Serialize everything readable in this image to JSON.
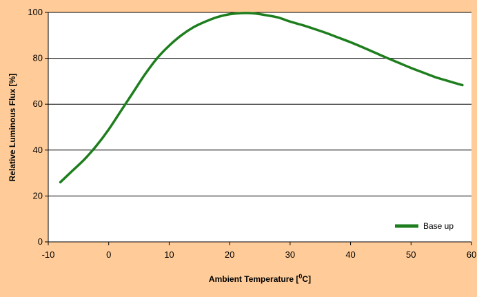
{
  "chart_data": {
    "type": "line",
    "xlabel": "Ambient Temperature [",
    "xlabel_sup": "0",
    "xlabel_suffix": "C]",
    "ylabel": "Relative Luminous Flux [%]",
    "xlim": [
      -10,
      60
    ],
    "ylim": [
      0,
      100
    ],
    "x_ticks": [
      -10,
      0,
      10,
      20,
      30,
      40,
      50,
      60
    ],
    "y_ticks": [
      0,
      20,
      40,
      60,
      80,
      100
    ],
    "grid": "horizontal",
    "legend_position": "bottom-right",
    "series": [
      {
        "name": "Base up",
        "color": "#1E7E1E",
        "x": [
          -8,
          -6,
          -4,
          -2,
          0,
          2,
          4,
          6,
          8,
          10,
          12,
          14,
          16,
          18,
          20,
          22,
          24,
          26,
          28,
          30,
          32,
          34,
          36,
          38,
          40,
          42,
          44,
          46,
          48,
          50,
          52,
          54,
          56,
          58.5
        ],
        "y": [
          26,
          31,
          36,
          42,
          49,
          57,
          65,
          73,
          80,
          85.5,
          90,
          93.5,
          96,
          98,
          99.2,
          99.7,
          99.6,
          98.8,
          97.8,
          96,
          94.5,
          92.8,
          91,
          89,
          87,
          84.8,
          82.5,
          80.2,
          78,
          75.8,
          73.8,
          71.8,
          70.2,
          68.3
        ]
      }
    ]
  }
}
